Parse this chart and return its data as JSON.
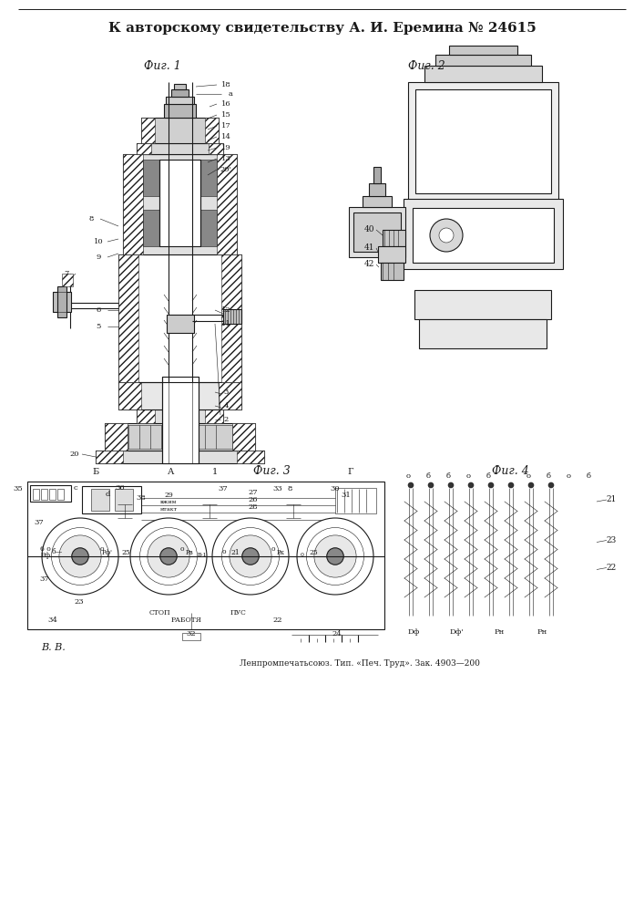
{
  "title": "К авторскому свидетельству А. И. Еремина № 24615",
  "fig1_label": "Фиг. 1",
  "fig2_label": "Фиг. 2",
  "fig3_label": "Фиг. 3",
  "fig4_label": "Фиг. 4",
  "bottom_left": "В. В.",
  "bottom_right": "Ленпромпечатьсоюз. Тип. «Печ. Труд». Зак. 4903—200",
  "bg_color": "#ffffff",
  "lc": "#1a1a1a"
}
